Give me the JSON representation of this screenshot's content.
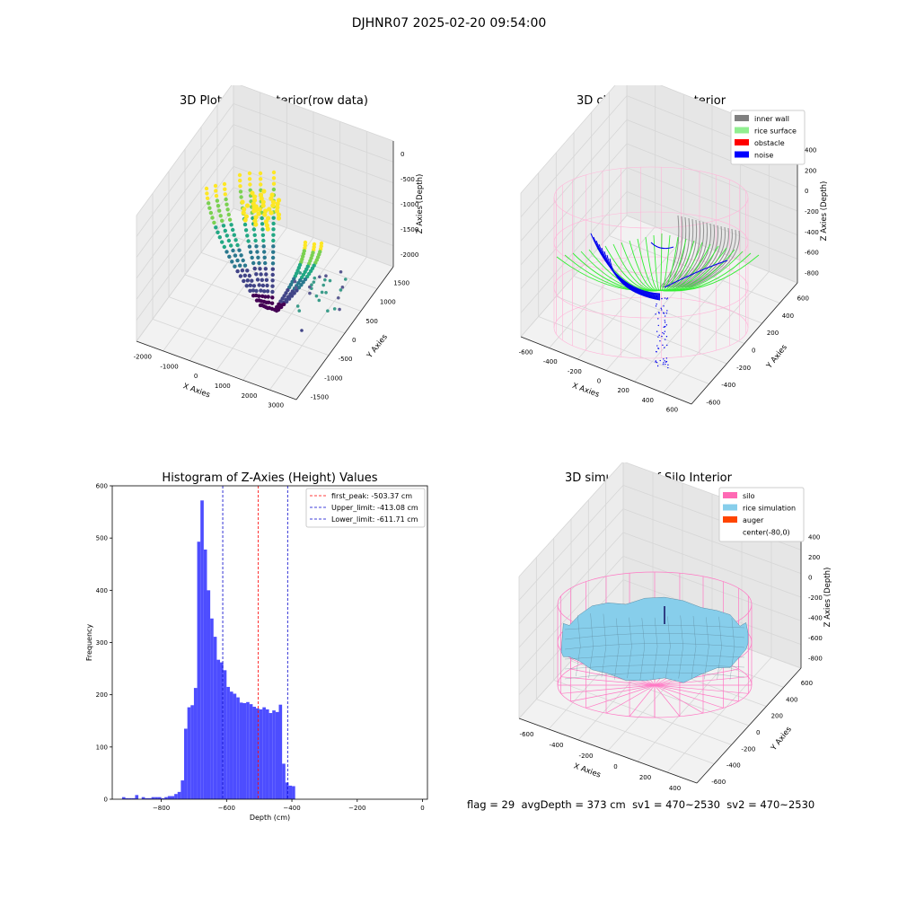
{
  "figure": {
    "title": "DJHNR07 2025-02-20 09:54:00",
    "status": {
      "flag": "flag = 29",
      "avg_depth": "avgDepth = 373 cm",
      "sv1": "sv1 = 470~2530",
      "sv2": "sv2 = 470~2530"
    }
  },
  "chart_data": [
    {
      "type": "scatter",
      "subtype": "3d",
      "title": "3D Plot of Silo Interior(row data)",
      "xlabel": "X Axies",
      "ylabel": "Y Axies",
      "zlabel": "Z Axies (Depth)",
      "x_ticks": [
        "-2000",
        "-1000",
        "0",
        "1000",
        "2000",
        "3000"
      ],
      "y_ticks": [
        "-1500",
        "-1000",
        "-500",
        "0",
        "500",
        "1000",
        "1500"
      ],
      "z_ticks": [
        "0",
        "-500",
        "-1000",
        "-1500",
        "-2000"
      ],
      "colormap": "viridis",
      "grid": true
    },
    {
      "type": "scatter",
      "subtype": "3d",
      "title": "3D classify of Silo Interior",
      "xlabel": "X Axies",
      "ylabel": "Y Axies",
      "zlabel": "Z Axies (Depth)",
      "x_ticks": [
        "-600",
        "-400",
        "-200",
        "0",
        "200",
        "400",
        "600"
      ],
      "y_ticks": [
        "-600",
        "-400",
        "-200",
        "0",
        "200",
        "400",
        "600"
      ],
      "z_ticks": [
        "400",
        "200",
        "0",
        "-200",
        "-400",
        "-600",
        "-800"
      ],
      "legend": {
        "placement": "top-right",
        "entries": [
          {
            "label": "inner wall",
            "color": "#808080"
          },
          {
            "label": "rice surface",
            "color": "#90ee90"
          },
          {
            "label": "obstacle",
            "color": "#ff0000"
          },
          {
            "label": "noise",
            "color": "#0000ff"
          }
        ]
      },
      "grid": true
    },
    {
      "type": "bar",
      "subtype": "histogram",
      "title": "Histogram of Z-Axies (Height) Values",
      "xlabel": "Depth (cm)",
      "ylabel": "Frequency",
      "xlim": [
        -950,
        15
      ],
      "ylim": [
        0,
        600
      ],
      "x_ticks": [
        -800,
        -600,
        -400,
        -200,
        0
      ],
      "y_ticks": [
        0,
        100,
        200,
        300,
        400,
        500,
        600
      ],
      "bar_color": "#4d4dff",
      "bin_width": 10,
      "bin_start": -920,
      "values": [
        4,
        2,
        2,
        2,
        8,
        0,
        4,
        2,
        2,
        4,
        4,
        4,
        2,
        4,
        6,
        6,
        10,
        14,
        36,
        135,
        176,
        180,
        213,
        493,
        572,
        478,
        400,
        346,
        311,
        267,
        262,
        247,
        215,
        206,
        202,
        195,
        185,
        184,
        186,
        182,
        177,
        174,
        172,
        176,
        172,
        165,
        170,
        167,
        181,
        68,
        32,
        26,
        25
      ],
      "vlines": [
        {
          "label": "first_peak: -503.37 cm",
          "x": -503.37,
          "color": "#ff0000"
        },
        {
          "label": "Upper_limit: -413.08 cm",
          "x": -413.08,
          "color": "#0000cc"
        },
        {
          "label": "Lower_limit: -611.71 cm",
          "x": -611.71,
          "color": "#0000cc"
        }
      ],
      "legend": {
        "placement": "top-right"
      }
    },
    {
      "type": "area",
      "subtype": "3d-surface",
      "title": "3D simulation of Silo Interior",
      "xlabel": "X Axies",
      "ylabel": "Y Axies",
      "zlabel": "Z Axies (Depth)",
      "x_ticks": [
        "-600",
        "-400",
        "-200",
        "0",
        "200",
        "400"
      ],
      "y_ticks": [
        "-600",
        "-400",
        "-200",
        "0",
        "200",
        "400",
        "600"
      ],
      "z_ticks": [
        "400",
        "200",
        "0",
        "-200",
        "-400",
        "-600",
        "-800"
      ],
      "legend": {
        "placement": "top-right",
        "entries": [
          {
            "label": "silo",
            "color": "#ff69b4"
          },
          {
            "label": "rice simulation",
            "color": "#87ceeb"
          },
          {
            "label": "auger",
            "color": "#ff4500"
          },
          {
            "label": "center(-80,0)",
            "color": "#ffffff"
          }
        ]
      },
      "grid": true
    }
  ]
}
